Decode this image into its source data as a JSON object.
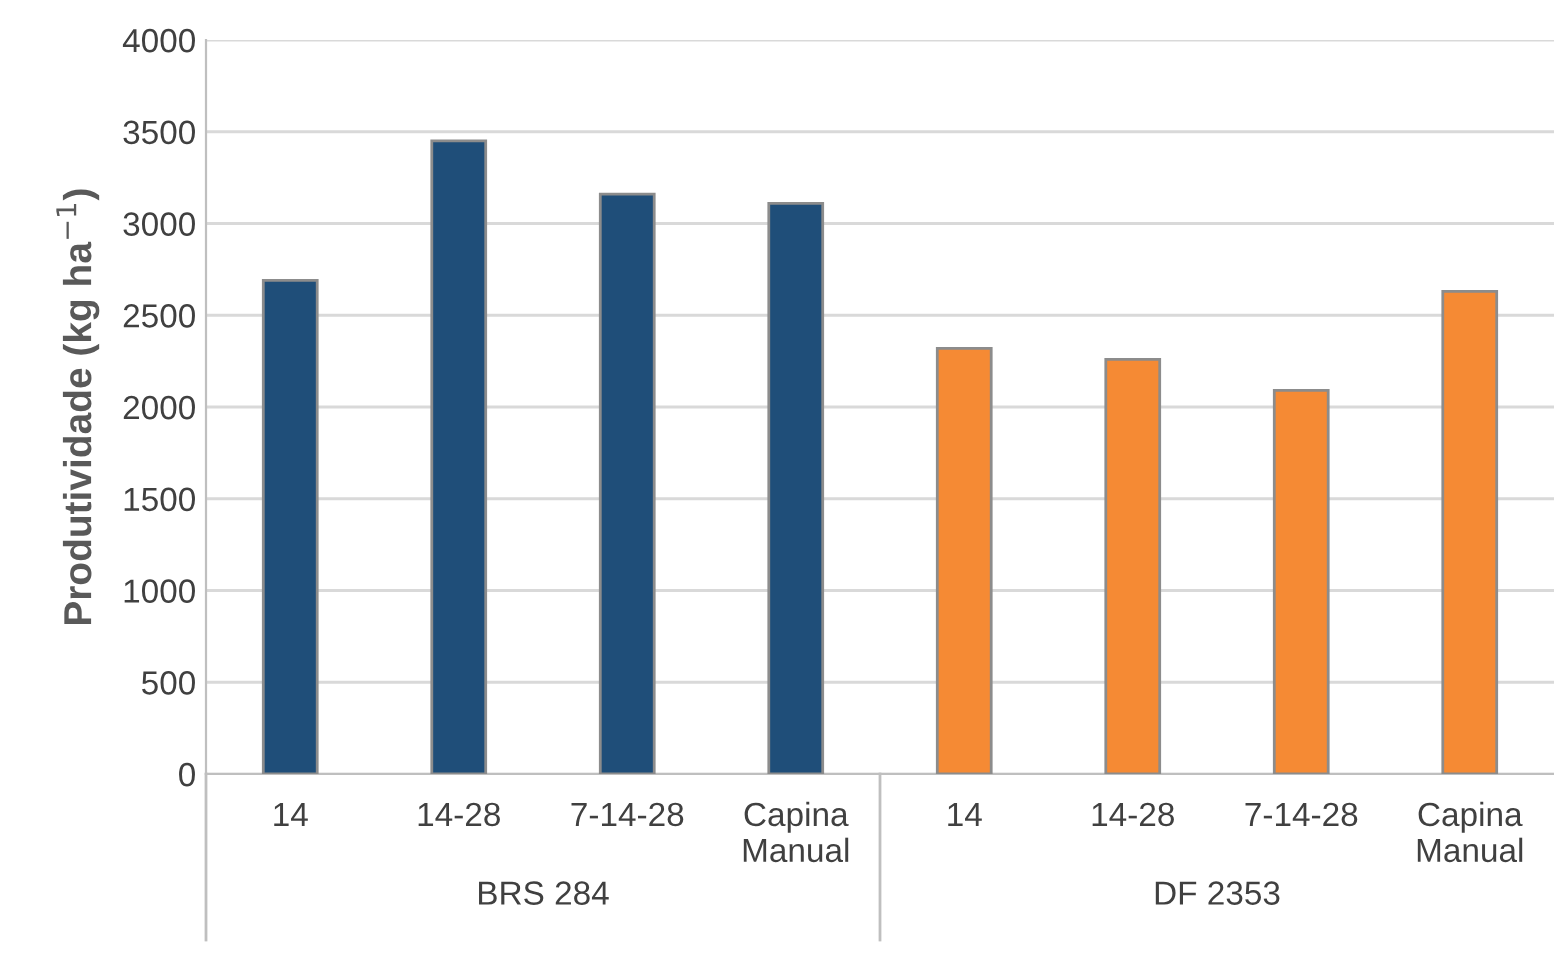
{
  "chart_data": {
    "type": "bar",
    "ylabel": "Produtividade (kg ha$^{−1}$)",
    "categories": [
      "14",
      "14-28",
      "7-14-28",
      "Capina\nManual",
      "14",
      "14-28",
      "7-14-28",
      "Capina\nManual"
    ],
    "values": [
      2690,
      3450,
      3160,
      3110,
      2320,
      2260,
      2090,
      2630
    ],
    "colors": [
      "#1f4e79",
      "#1f4e79",
      "#1f4e79",
      "#1f4e79",
      "#f58a34",
      "#f58a34",
      "#f58a34",
      "#f58a34"
    ],
    "ylim": [
      0,
      4000
    ],
    "yticks": [
      0,
      500,
      1000,
      1500,
      2000,
      2500,
      3000,
      3500,
      4000
    ],
    "grid": "y",
    "annotations": [
      "BRS 284",
      "DF 2353"
    ]
  }
}
